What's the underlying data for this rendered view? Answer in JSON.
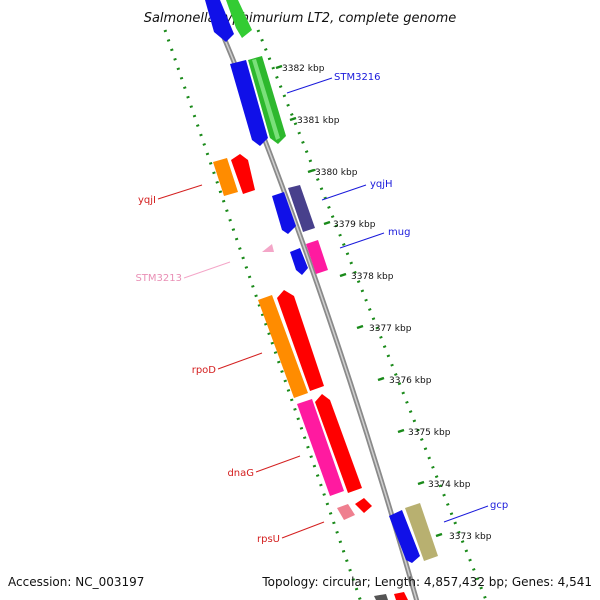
{
  "title": "Salmonella typhimurium LT2, complete genome",
  "footer": {
    "accession": "Accession: NC_003197",
    "topology": "Topology: circular; Length: 4,857,432 bp; Genes: 4,541"
  },
  "kbp_ticks": [
    "3382 kbp",
    "3381 kbp",
    "3380 kbp",
    "3379 kbp",
    "3378 kbp",
    "3377 kbp",
    "3376 kbp",
    "3375 kbp",
    "3374 kbp",
    "3373 kbp"
  ],
  "gene_labels": [
    {
      "name": "STM3216",
      "side": "right",
      "color": "#1a1adb"
    },
    {
      "name": "yqjH",
      "side": "right",
      "color": "#1a1adb"
    },
    {
      "name": "mug",
      "side": "right",
      "color": "#1a1adb"
    },
    {
      "name": "gcp",
      "side": "right",
      "color": "#1a1adb"
    },
    {
      "name": "yqjI",
      "side": "left",
      "color": "#d42020"
    },
    {
      "name": "STM3213",
      "side": "left",
      "color": "#e98fb5"
    },
    {
      "name": "rpoD",
      "side": "left",
      "color": "#d42020"
    },
    {
      "name": "dnaG",
      "side": "left",
      "color": "#d42020"
    },
    {
      "name": "rpsU",
      "side": "left",
      "color": "#d42020"
    }
  ],
  "colors": {
    "blue": "#1010e8",
    "green": "#33cc33",
    "orange": "#ff8c00",
    "red": "#ff0000",
    "pink": "#ff1aa0",
    "purple": "#48408c",
    "olive": "#b8b070",
    "light_pink": "#ef7f8f",
    "pale_pink": "#f4a6c8",
    "backbone": "#888888",
    "tick_green": "#1a8a1a"
  },
  "icons": {
    "feature_arrow": "gene-arrow-icon"
  }
}
